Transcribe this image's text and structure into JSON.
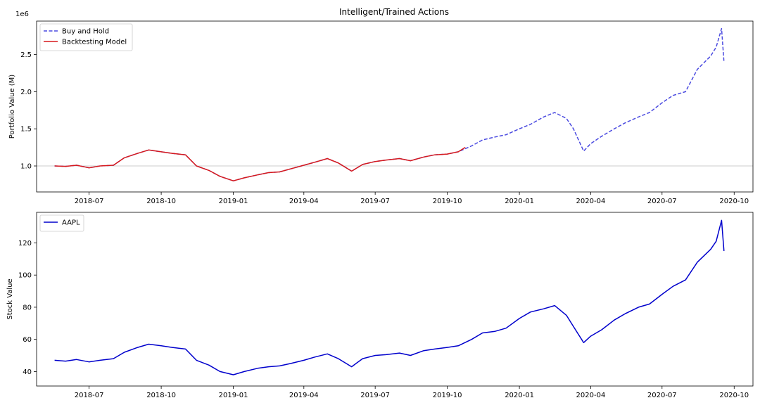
{
  "figure": {
    "title": "Intelligent/Trained Actions"
  },
  "chart_data": [
    {
      "type": "line",
      "title": "Intelligent/Trained Actions",
      "xlabel": "",
      "ylabel": "Portfolio Value (M)",
      "offset_text": "1e6",
      "x_ticks": [
        "2018-07",
        "2018-10",
        "2019-01",
        "2019-04",
        "2019-07",
        "2019-10",
        "2020-01",
        "2020-04",
        "2020-07",
        "2020-10"
      ],
      "y_ticks": [
        "1.0",
        "1.5",
        "2.0",
        "2.5"
      ],
      "xlim": [
        "2018-04-25",
        "2020-10-25"
      ],
      "ylim": [
        650000,
        2950000
      ],
      "reference_line": 1000000,
      "legend_position": "upper-left",
      "series": [
        {
          "name": "Buy and Hold",
          "style": "dashed",
          "color": "#4a4ae0",
          "x": [
            "2018-05-18",
            "2018-06-01",
            "2018-06-15",
            "2018-07-01",
            "2018-07-15",
            "2018-08-01",
            "2018-08-15",
            "2018-09-01",
            "2018-09-15",
            "2018-10-01",
            "2018-10-15",
            "2018-11-01",
            "2018-11-15",
            "2018-12-01",
            "2018-12-15",
            "2019-01-01",
            "2019-01-15",
            "2019-02-01",
            "2019-02-15",
            "2019-03-01",
            "2019-03-15",
            "2019-04-01",
            "2019-04-15",
            "2019-05-01",
            "2019-05-15",
            "2019-06-01",
            "2019-06-15",
            "2019-07-01",
            "2019-07-15",
            "2019-08-01",
            "2019-08-15",
            "2019-09-01",
            "2019-09-15",
            "2019-10-01",
            "2019-10-15",
            "2019-11-01",
            "2019-11-15",
            "2019-12-01",
            "2019-12-15",
            "2020-01-01",
            "2020-01-15",
            "2020-02-01",
            "2020-02-15",
            "2020-03-01",
            "2020-03-10",
            "2020-03-23",
            "2020-04-01",
            "2020-04-15",
            "2020-05-01",
            "2020-05-15",
            "2020-06-01",
            "2020-06-15",
            "2020-07-01",
            "2020-07-15",
            "2020-07-31",
            "2020-08-15",
            "2020-09-01",
            "2020-09-08",
            "2020-09-15",
            "2020-09-18"
          ],
          "y": [
            1000000,
            995000,
            1010000,
            975000,
            1000000,
            1010000,
            1110000,
            1170000,
            1215000,
            1190000,
            1170000,
            1150000,
            1000000,
            940000,
            860000,
            800000,
            840000,
            880000,
            910000,
            920000,
            960000,
            1010000,
            1050000,
            1100000,
            1040000,
            930000,
            1020000,
            1060000,
            1080000,
            1100000,
            1070000,
            1120000,
            1150000,
            1160000,
            1190000,
            1270000,
            1350000,
            1390000,
            1420000,
            1500000,
            1560000,
            1660000,
            1720000,
            1640000,
            1500000,
            1200000,
            1300000,
            1400000,
            1500000,
            1580000,
            1660000,
            1720000,
            1850000,
            1950000,
            2000000,
            2300000,
            2480000,
            2600000,
            2850000,
            2400000
          ]
        },
        {
          "name": "Backtesting Model",
          "style": "solid",
          "color": "#d7191c",
          "x": [
            "2018-05-18",
            "2018-06-01",
            "2018-06-15",
            "2018-07-01",
            "2018-07-15",
            "2018-08-01",
            "2018-08-15",
            "2018-09-01",
            "2018-09-15",
            "2018-10-01",
            "2018-10-15",
            "2018-11-01",
            "2018-11-15",
            "2018-12-01",
            "2018-12-15",
            "2019-01-01",
            "2019-01-15",
            "2019-02-01",
            "2019-02-15",
            "2019-03-01",
            "2019-03-15",
            "2019-04-01",
            "2019-04-15",
            "2019-05-01",
            "2019-05-15",
            "2019-06-01",
            "2019-06-15",
            "2019-07-01",
            "2019-07-15",
            "2019-08-01",
            "2019-08-15",
            "2019-09-01",
            "2019-09-15",
            "2019-10-01",
            "2019-10-15",
            "2019-10-24"
          ],
          "y": [
            1000000,
            995000,
            1010000,
            975000,
            1000000,
            1010000,
            1110000,
            1170000,
            1215000,
            1190000,
            1170000,
            1150000,
            1000000,
            940000,
            860000,
            800000,
            840000,
            880000,
            910000,
            920000,
            960000,
            1010000,
            1050000,
            1100000,
            1040000,
            930000,
            1020000,
            1060000,
            1080000,
            1100000,
            1070000,
            1120000,
            1150000,
            1160000,
            1190000,
            1250000
          ]
        }
      ]
    },
    {
      "type": "line",
      "title": "",
      "xlabel": "",
      "ylabel": "Stock Value",
      "x_ticks": [
        "2018-07",
        "2018-10",
        "2019-01",
        "2019-04",
        "2019-07",
        "2019-10",
        "2020-01",
        "2020-04",
        "2020-07",
        "2020-10"
      ],
      "y_ticks": [
        "40",
        "60",
        "80",
        "100",
        "120"
      ],
      "xlim": [
        "2018-04-25",
        "2020-10-25"
      ],
      "ylim": [
        31,
        139
      ],
      "legend_position": "upper-left",
      "series": [
        {
          "name": "AAPL",
          "style": "solid",
          "color": "#0000cc",
          "x": [
            "2018-05-18",
            "2018-06-01",
            "2018-06-15",
            "2018-07-01",
            "2018-07-15",
            "2018-08-01",
            "2018-08-15",
            "2018-09-01",
            "2018-09-15",
            "2018-10-01",
            "2018-10-15",
            "2018-11-01",
            "2018-11-15",
            "2018-12-01",
            "2018-12-15",
            "2019-01-01",
            "2019-01-15",
            "2019-02-01",
            "2019-02-15",
            "2019-03-01",
            "2019-03-15",
            "2019-04-01",
            "2019-04-15",
            "2019-05-01",
            "2019-05-15",
            "2019-06-01",
            "2019-06-15",
            "2019-07-01",
            "2019-07-15",
            "2019-08-01",
            "2019-08-15",
            "2019-09-01",
            "2019-09-15",
            "2019-10-01",
            "2019-10-15",
            "2019-11-01",
            "2019-11-15",
            "2019-12-01",
            "2019-12-15",
            "2020-01-01",
            "2020-01-15",
            "2020-02-01",
            "2020-02-15",
            "2020-03-01",
            "2020-03-10",
            "2020-03-23",
            "2020-04-01",
            "2020-04-15",
            "2020-05-01",
            "2020-05-15",
            "2020-06-01",
            "2020-06-15",
            "2020-07-01",
            "2020-07-15",
            "2020-07-31",
            "2020-08-15",
            "2020-09-01",
            "2020-09-08",
            "2020-09-15",
            "2020-09-18"
          ],
          "y": [
            47,
            46.5,
            47.5,
            46,
            47,
            48,
            52,
            55,
            57,
            56,
            55,
            54,
            47,
            44,
            40,
            38,
            40,
            42,
            43,
            43.5,
            45,
            47,
            49,
            51,
            48,
            43,
            48,
            50,
            50.5,
            51.5,
            50,
            53,
            54,
            55,
            56,
            60,
            64,
            65,
            67,
            73,
            77,
            79,
            81,
            75,
            68,
            58,
            62,
            66,
            72,
            76,
            80,
            82,
            88,
            93,
            97,
            108,
            116,
            121,
            134,
            115
          ]
        }
      ]
    }
  ]
}
